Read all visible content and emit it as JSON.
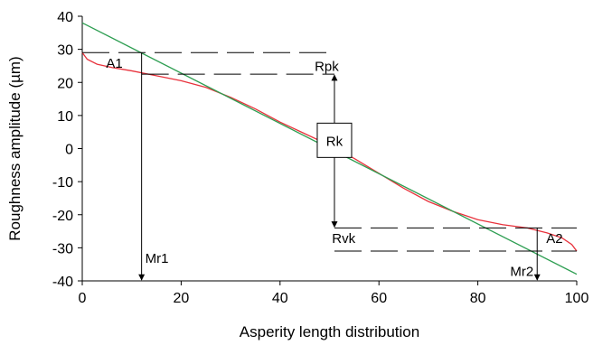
{
  "chart_data": {
    "type": "line",
    "xlabel": "Asperity length distribution",
    "ylabel": "Roughness amplitude (µm)",
    "xlim": [
      0,
      100
    ],
    "ylim": [
      -40,
      40
    ],
    "x_ticks": [
      "0",
      "20",
      "40",
      "60",
      "80",
      "100"
    ],
    "x_tick_values": [
      0,
      20,
      40,
      60,
      80,
      100
    ],
    "y_ticks": [
      "40",
      "30",
      "20",
      "10",
      "0",
      "-10",
      "-20",
      "-30",
      "-40"
    ],
    "y_tick_values": [
      40,
      30,
      20,
      10,
      0,
      -10,
      -20,
      -30,
      -40
    ],
    "grid": false,
    "series": [
      {
        "color": "#e8323c",
        "x": [
          0,
          1,
          3,
          6,
          10,
          15,
          20,
          25,
          30,
          35,
          40,
          45,
          50,
          55,
          60,
          65,
          70,
          75,
          80,
          85,
          90,
          94,
          97,
          99,
          100
        ],
        "values": [
          29,
          27,
          25.5,
          24.5,
          23.5,
          22,
          20.5,
          18.5,
          15.5,
          12,
          8,
          4.5,
          1,
          -3,
          -7.5,
          -12,
          -16,
          -19,
          -21.5,
          -23,
          -24,
          -25.5,
          -27,
          -29,
          -31
        ]
      },
      {
        "color": "#2e9e52",
        "x": [
          0,
          100
        ],
        "values": [
          38,
          -38
        ]
      }
    ],
    "annotations": {
      "A1": "A1",
      "A2": "A2",
      "Rpk": "Rpk",
      "Rk": "Rk",
      "Rvk": "Rvk",
      "Mr1": "Mr1",
      "Mr2": "Mr2"
    },
    "reference_values": {
      "upper_core_y": 29,
      "upper_peak_y": 22.5,
      "lower_core_y": -24,
      "lower_valley_y": -31,
      "mr1_x": 12,
      "mr2_x": 92,
      "rk_box_x": 51,
      "rk_box_y": 2.5
    }
  }
}
